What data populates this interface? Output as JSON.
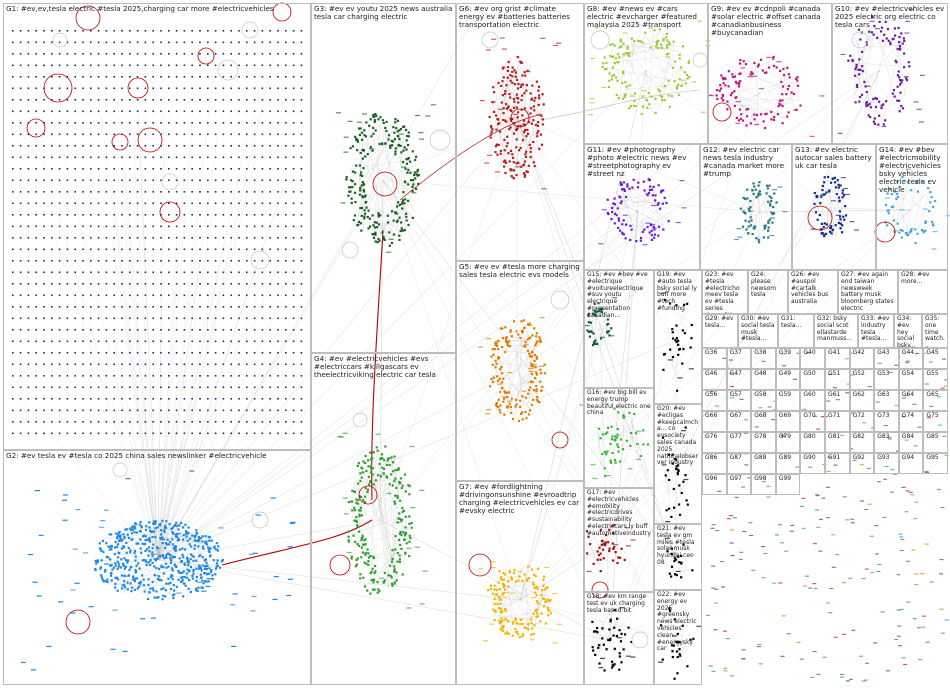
{
  "colors": {
    "G1": "#1a237e",
    "G2": "#1e88e5",
    "G3": "#1b5e20",
    "G4": "#2e9e2e",
    "G5": "#e07b00",
    "G6": "#b71c1c",
    "G7": "#f5b400",
    "G8": "#9acd32",
    "G9": "#c2187a",
    "G10": "#6a1b9a",
    "G11": "#6a1bd6",
    "G12": "#26778a",
    "G13": "#0d2a8a",
    "G14": "#45a6d8",
    "G15": "#0f5e3a",
    "G16": "#38b338",
    "G17": "#a01010",
    "edge": "#a8a8a8",
    "loop": "#b00000"
  },
  "groups": [
    {
      "id": "G1",
      "label": "G1: #ev,ev,tesla electric #tesla 2025,charging car more #electricvehicles"
    },
    {
      "id": "G2",
      "label": "G2: #ev tesla ev #tesla co 2025 china sales newslinker #electricvehicle"
    },
    {
      "id": "G3",
      "label": "G3: #ev ev youtu 2025 news australia tesla car charging electric"
    },
    {
      "id": "G4",
      "label": "G4: #ev #electricvehicles #evs #electriccars #killgascars ev theelectricviking electric car tesla"
    },
    {
      "id": "G5",
      "label": "G5: #ev ev #tesla more charging sales tesla electric evs models"
    },
    {
      "id": "G6",
      "label": "G6: #ev org grist #climate energy ev #batteries batteries transportation electric"
    },
    {
      "id": "G7",
      "label": "G7: #ev #fordlightning #drivingonsunshine #evroadtrip charging #electricvehicles ev car #evsky electric"
    },
    {
      "id": "G8",
      "label": "G8: #ev #news ev #cars electric #evcharger #featured malaysia 2025 #transport"
    },
    {
      "id": "G9",
      "label": "G9: #ev ev #cdnpoli #canada #solar electric #offset canada #canadianbusiness #buycanadian"
    },
    {
      "id": "G10",
      "label": "G10: #ev #electricvehicles ev 2025 electric org electric co tesla cars"
    },
    {
      "id": "G11",
      "label": "G11: #ev #photography #photo #electric news #ev #streetphotography ev #street nz"
    },
    {
      "id": "G12",
      "label": "G12: #ev electric car news tesla industry #canada market more #trump"
    },
    {
      "id": "G13",
      "label": "G13: #ev electric autocar sales battery uk car tesla"
    },
    {
      "id": "G14",
      "label": "G14: #ev #bev #electricmobility #electricvehicles bsky vehicles electric tesla ev vehicle"
    },
    {
      "id": "G15",
      "label": "G15: #ev #bev #ve #electrique #voitureelectrique #suv youtu electrique #presentation canadian..."
    },
    {
      "id": "G16",
      "label": "G16: #ev big bill ev energy trump beautiful electric one china"
    },
    {
      "id": "G17",
      "label": "G17: #ev #electricvehicles #emobility #electricdrives #sustainability #electriccars ly buff #automotiveindustry"
    },
    {
      "id": "G18",
      "label": "G18: #ev km range test ev uk charging tesla based bit"
    },
    {
      "id": "G19",
      "label": "G19: #ev #auto tesla bsky social ly buff more #tech #funding"
    },
    {
      "id": "G20",
      "label": "G20: #ev #ecligas #keepcalmcha... co evsociety sales canada 2025 nationalobserver industry"
    },
    {
      "id": "G21",
      "label": "G21: #ev tesla ev gm miles #tesla solar musk hyundai ceo 08"
    },
    {
      "id": "G22",
      "label": "G22: #ev energy ev 2025 #greensky news electric vehicles clean #energysky car"
    },
    {
      "id": "G23",
      "label": "G23: #ev #tesla #electrichomeev tesla ev #tesla series #uspolitics"
    },
    {
      "id": "G24",
      "label": "G24: please newsom tesla"
    },
    {
      "id": "G26",
      "label": "G26: #ev #auspol #cartalk vehicles bus australia"
    },
    {
      "id": "G27",
      "label": "G27: #ev again end taiwan newsweek battery musk bloomberg states electric"
    },
    {
      "id": "G28",
      "label": "G28: #ev more..."
    },
    {
      "id": "G29",
      "label": "G29: #ev tesla..."
    },
    {
      "id": "G30",
      "label": "G30: #ev social tesla musk #tesla..."
    },
    {
      "id": "G31",
      "label": "G31: tesla..."
    },
    {
      "id": "G32",
      "label": "G32: bsky social scot ellastarde manmuss..."
    },
    {
      "id": "G33",
      "label": "G33: #ev industry tesla #tesla..."
    },
    {
      "id": "G34",
      "label": "G34: #ev hey social bsky..."
    },
    {
      "id": "G35",
      "label": "G35: one time watch..."
    }
  ],
  "mini_labels": [
    "G36",
    "G37",
    "G38",
    "G39",
    "G40",
    "G41",
    "G42",
    "G43",
    "G44",
    "G45",
    "G46",
    "G47",
    "G48",
    "G49",
    "G50",
    "G51",
    "G52",
    "G53",
    "G54",
    "G55",
    "G56",
    "G57",
    "G58",
    "G59",
    "G60",
    "G61",
    "G62",
    "G63",
    "G64",
    "G65",
    "G66",
    "G67",
    "G68",
    "G69",
    "G70",
    "G71",
    "G72",
    "G73",
    "G74",
    "G75",
    "G76",
    "G77",
    "G78",
    "G79",
    "G80",
    "G81",
    "G82",
    "G83",
    "G84",
    "G85",
    "G86",
    "G87",
    "G88",
    "G89",
    "G90",
    "G91",
    "G92",
    "G93",
    "G94",
    "G95",
    "G96",
    "G97",
    "G98",
    "G99"
  ]
}
